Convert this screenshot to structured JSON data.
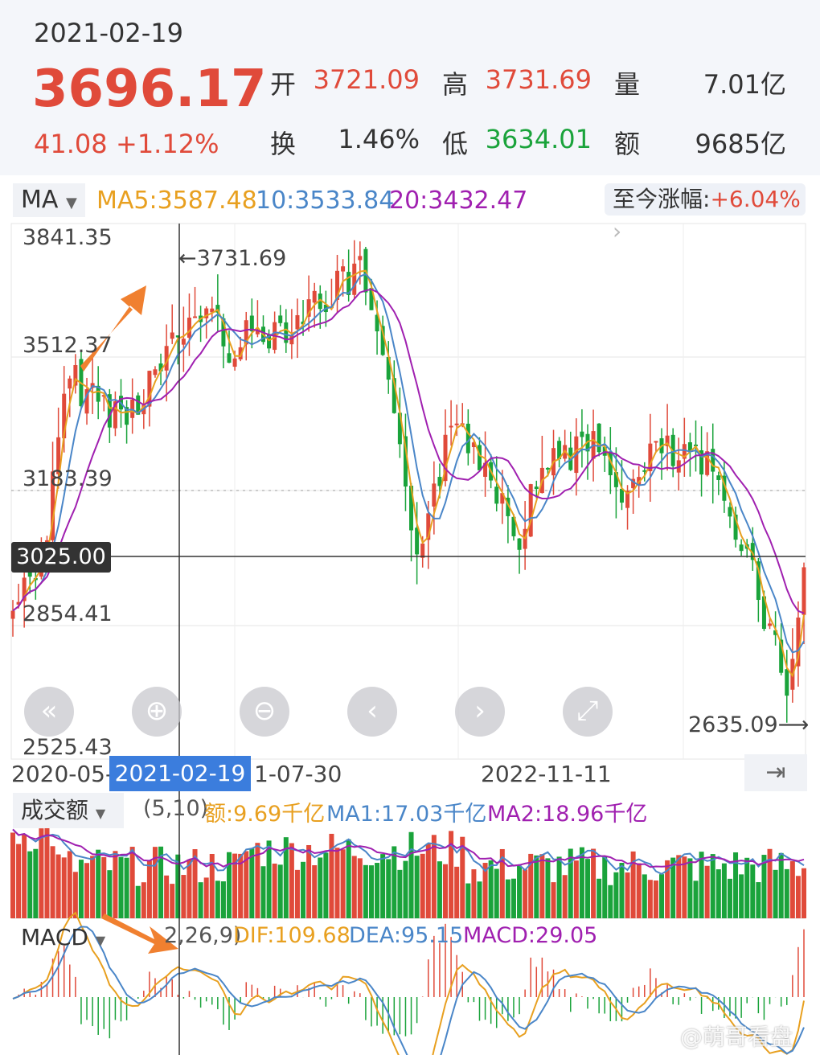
{
  "header": {
    "date": "2021-02-19",
    "price": "3696.17",
    "change": "41.08",
    "change_pct": "+1.12%",
    "open_label": "开",
    "open": "3721.09",
    "high_label": "高",
    "high": "3731.69",
    "volume_label": "量",
    "volume": "7.01亿",
    "turnover_label": "换",
    "turnover": "1.46%",
    "low_label": "低",
    "low": "3634.01",
    "amount_label": "额",
    "amount": "9685亿"
  },
  "ma_bar": {
    "selector": "MA",
    "ma5": "MA5:3587.48",
    "ma10": "10:3533.84",
    "ma20": "20:3432.47",
    "since_label": "至今涨幅:",
    "since_value": "+6.04%"
  },
  "main_chart": {
    "y_labels": [
      "3841.35",
      "3512.37",
      "3183.39",
      "2854.41",
      "2525.43"
    ],
    "high_marker": "3731.69",
    "low_marker": "2635.09",
    "cursor_price": "3025.00",
    "x_labels": [
      "2020-05-",
      "1-07-30",
      "2022-11-11"
    ],
    "selected_date": "2021-02-19"
  },
  "volume_panel": {
    "selector": "成交额",
    "params": "(5,10)",
    "amount": "额:9.69千亿",
    "ma1": "MA1:17.03千亿",
    "ma2": "MA2:18.96千亿"
  },
  "macd_panel": {
    "selector": "MACD",
    "params": "2,26,9)",
    "dif": "DIF:109.68",
    "dea": "DEA:95.15",
    "macd": "MACD:29.05"
  },
  "watermark": "@萌哥看盘",
  "colors": {
    "up": "#e04a3a",
    "down": "#1aa33b",
    "ma5": "#e8a020",
    "ma10": "#4a86c8",
    "ma20": "#a020b0",
    "selected": "#3b7ddd"
  },
  "icons": [
    "rewind-icon",
    "zoom-in-icon",
    "zoom-out-icon",
    "prev-icon",
    "next-icon",
    "fullscreen-icon",
    "jump-end-icon"
  ]
}
